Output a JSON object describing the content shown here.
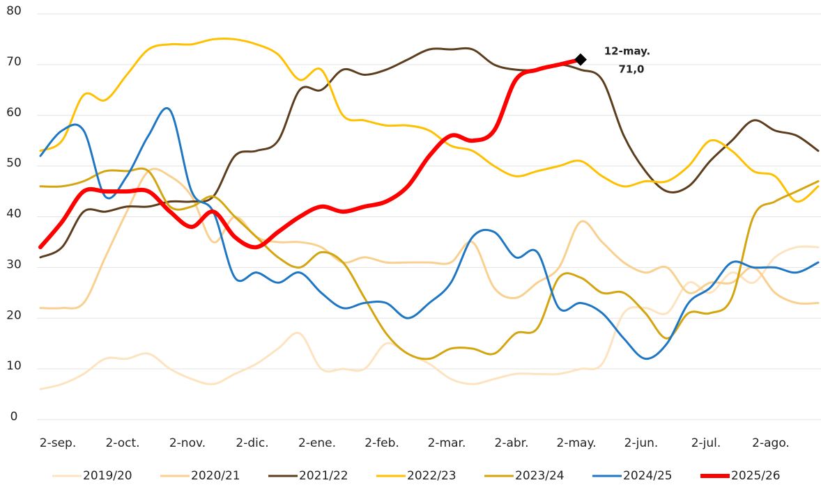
{
  "chart_data": {
    "type": "line",
    "categories": [
      "2-sep.",
      null,
      null,
      "2-oct.",
      null,
      null,
      "2-nov.",
      null,
      null,
      "2-dic.",
      null,
      null,
      "2-ene.",
      null,
      null,
      "2-feb.",
      null,
      null,
      "2-mar.",
      null,
      null,
      "2-abr.",
      null,
      null,
      "2-may.",
      null,
      null,
      "2-jun.",
      null,
      null,
      "2-jul.",
      null,
      null,
      "2-ago.",
      null,
      null,
      null
    ],
    "ylim": [
      0,
      80
    ],
    "yticks": [
      0,
      10,
      20,
      30,
      40,
      50,
      60,
      70,
      80
    ],
    "grid": true,
    "legend": "bottom",
    "series": [
      {
        "name": "2019/20",
        "color": "#fde3bf",
        "values": [
          6,
          7,
          9,
          12,
          12,
          13,
          10,
          8,
          7,
          9,
          11,
          14,
          17,
          10,
          10,
          10,
          15,
          13,
          11,
          8,
          7,
          8,
          9,
          9,
          9,
          10,
          11,
          21,
          22,
          21,
          27,
          25,
          29,
          27,
          32,
          34,
          34
        ]
      },
      {
        "name": "2020/21",
        "color": "#f9d08f",
        "values": [
          22,
          22,
          23,
          32,
          41,
          49,
          48,
          44,
          35,
          40,
          36,
          35,
          35,
          34,
          31,
          32,
          31,
          31,
          31,
          31,
          35,
          26,
          24,
          27,
          30,
          39,
          35,
          31,
          29,
          30,
          25,
          27,
          27,
          30,
          25,
          23,
          23
        ]
      },
      {
        "name": "2021/22",
        "color": "#5c3d1e",
        "values": [
          32,
          34,
          41,
          41,
          42,
          42,
          43,
          43,
          44,
          52,
          53,
          55,
          65,
          65,
          69,
          68,
          69,
          71,
          73,
          73,
          73,
          70,
          69,
          69,
          70,
          69,
          67,
          56,
          49,
          45,
          46,
          51,
          55,
          59,
          57,
          56,
          53
        ]
      },
      {
        "name": "2022/23",
        "color": "#ffc000",
        "values": [
          53,
          55,
          64,
          63,
          68,
          73,
          74,
          74,
          75,
          75,
          74,
          72,
          67,
          69,
          60,
          59,
          58,
          58,
          57,
          54,
          53,
          50,
          48,
          49,
          50,
          51,
          48,
          46,
          47,
          47,
          50,
          55,
          53,
          49,
          48,
          43,
          46
        ]
      },
      {
        "name": "2023/24",
        "color": "#d4a50f",
        "values": [
          46,
          46,
          47,
          49,
          49,
          49,
          42,
          42,
          44,
          40,
          36,
          32,
          30,
          33,
          31,
          24,
          17,
          13,
          12,
          14,
          14,
          13,
          17,
          18,
          28,
          28,
          25,
          25,
          21,
          16,
          21,
          21,
          24,
          40,
          43,
          45,
          47
        ]
      },
      {
        "name": "2024/25",
        "color": "#1f77c4",
        "values": [
          52,
          57,
          57,
          44,
          48,
          56,
          61,
          45,
          41,
          28,
          29,
          27,
          29,
          25,
          22,
          23,
          23,
          20,
          23,
          27,
          36,
          37,
          32,
          33,
          22,
          23,
          21,
          16,
          12,
          15,
          23,
          26,
          31,
          30,
          30,
          29,
          31
        ]
      },
      {
        "name": "2025/26",
        "color": "#ff0000",
        "values": [
          34,
          39,
          45,
          45,
          45,
          45,
          41,
          38,
          41,
          36,
          34,
          37,
          40,
          42,
          41,
          42,
          43,
          46,
          52,
          56,
          55,
          57,
          67,
          69,
          70,
          71,
          null,
          null,
          null,
          null,
          null,
          null,
          null,
          null,
          null,
          null,
          null
        ]
      }
    ],
    "annotations": [
      "12-may.",
      "71,0"
    ]
  }
}
